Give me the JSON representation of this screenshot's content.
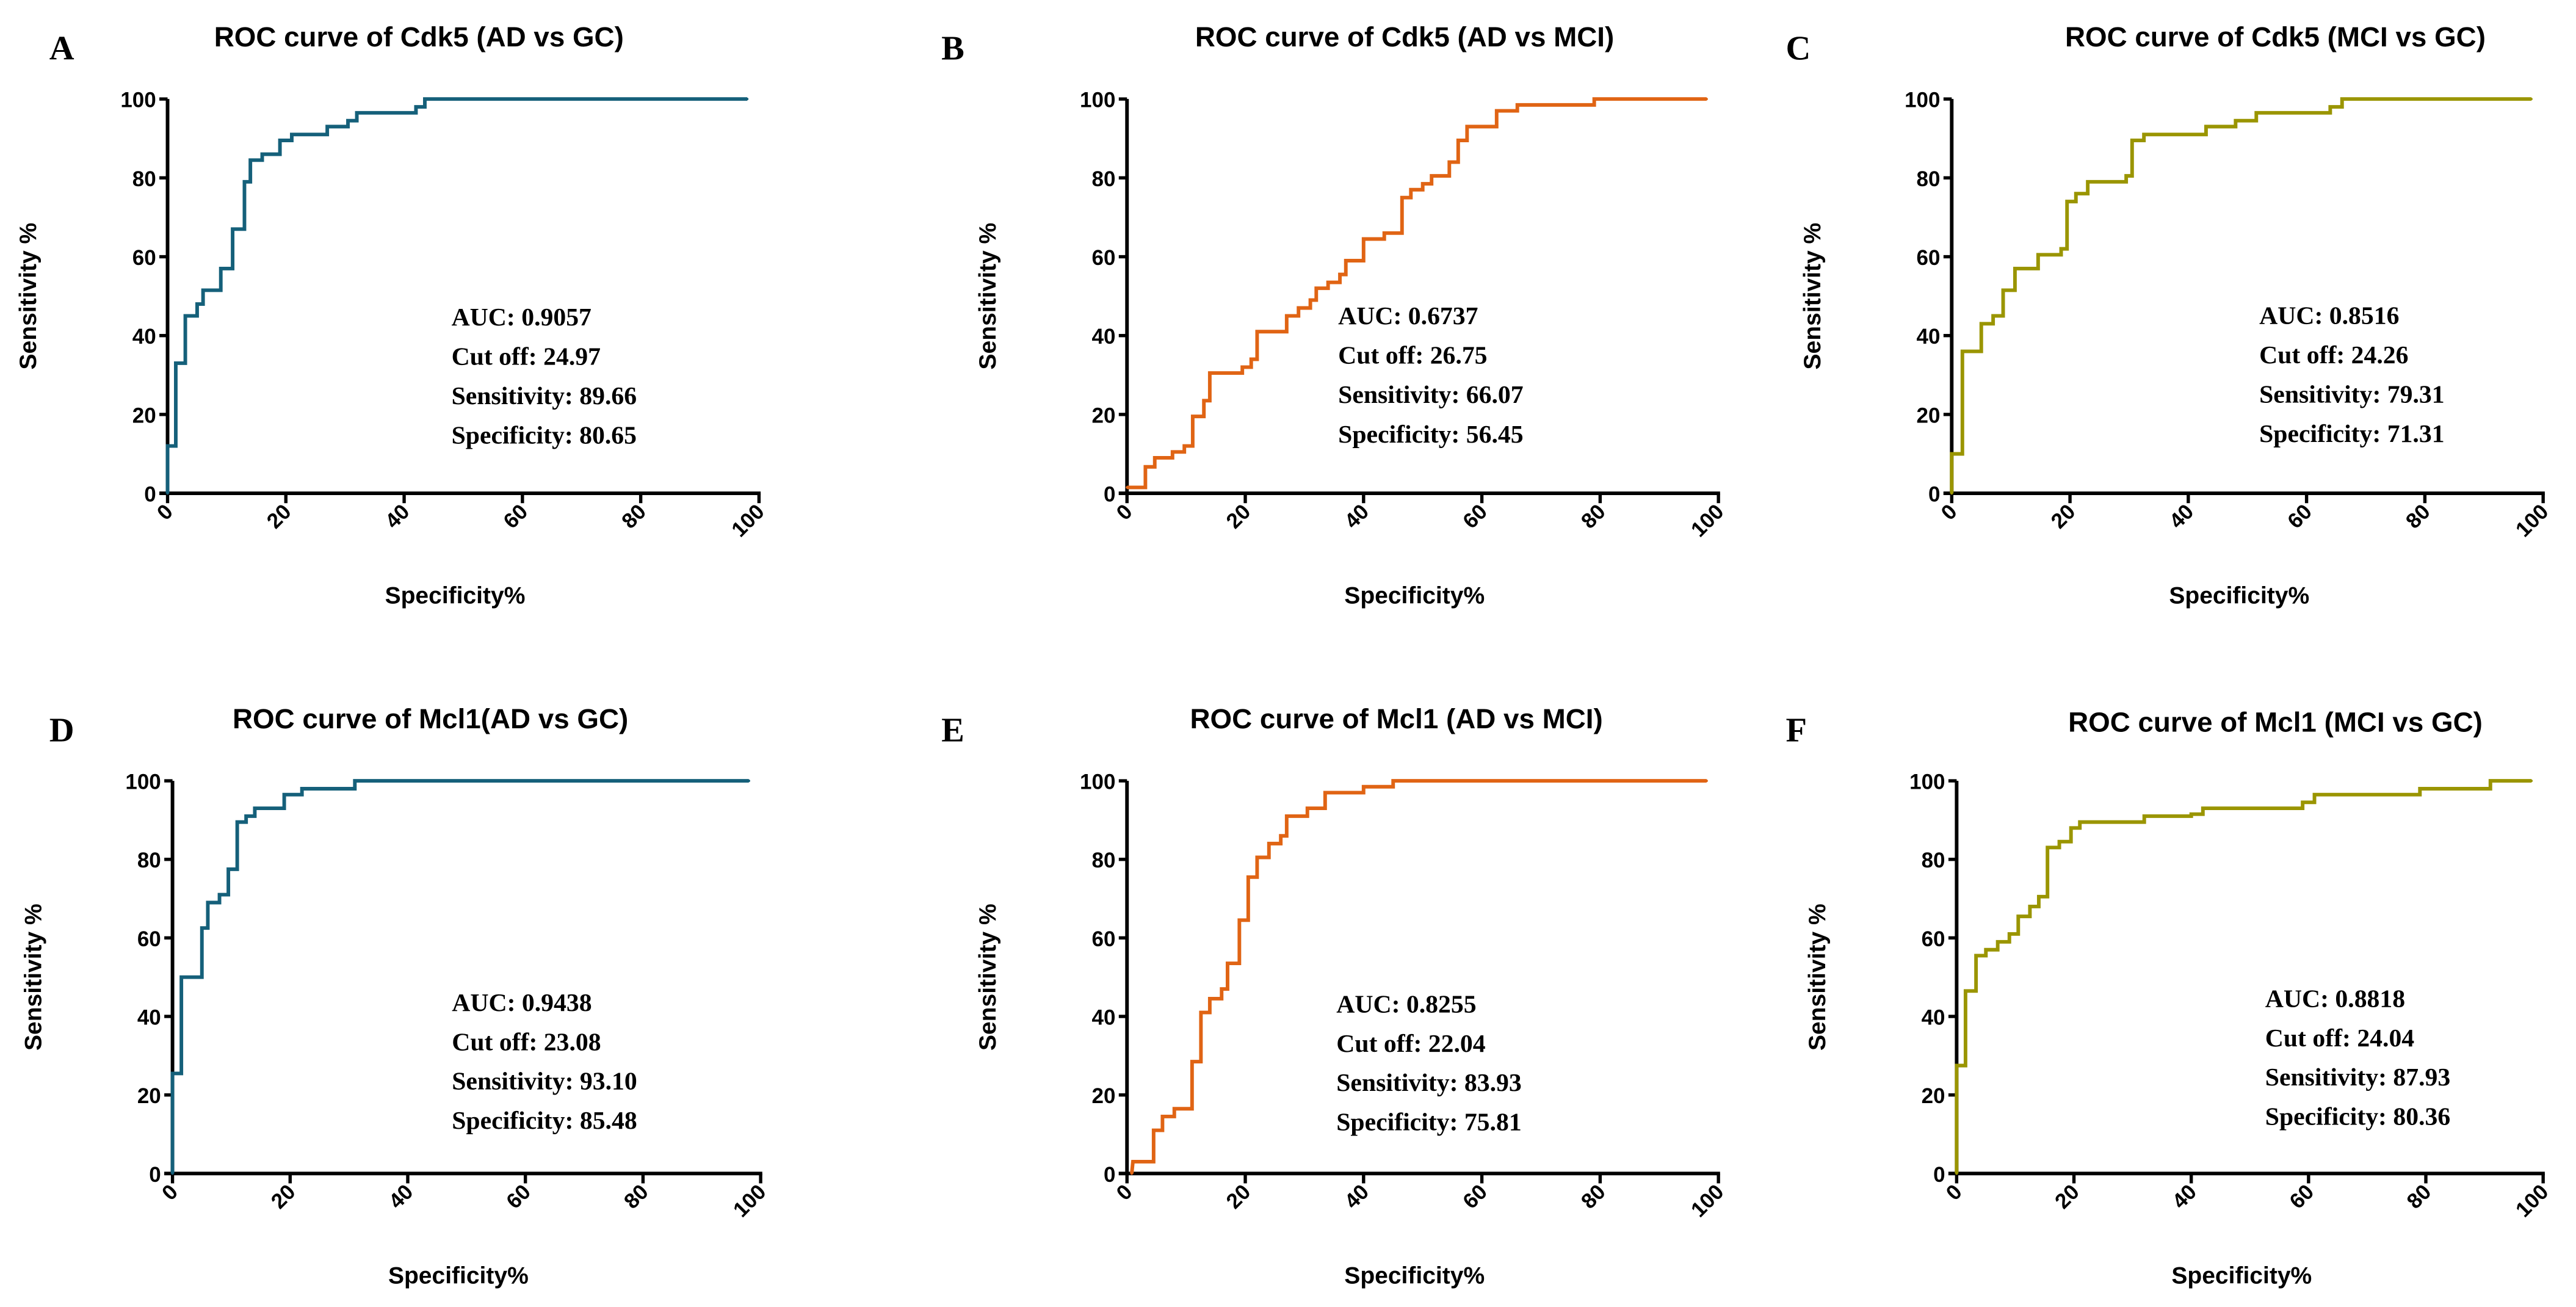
{
  "chart_data": [
    {
      "type": "line",
      "letter": "A",
      "title": "ROC curve of Cdk5 (AD vs GC)",
      "xlabel": "Specificity%",
      "ylabel": "Sensitivity %",
      "xlim": [
        0,
        100
      ],
      "ylim": [
        0,
        100
      ],
      "xticks": [
        "0",
        "20",
        "40",
        "60",
        "80",
        "100"
      ],
      "yticks": [
        "0",
        "20",
        "40",
        "60",
        "80",
        "100"
      ],
      "color": "#15607a",
      "grid": false,
      "stats": [
        "AUC: 0.9057",
        "Cut off: 24.97",
        "Sensitivity: 89.66",
        "Specificity: 80.65"
      ],
      "steps": [
        [
          0,
          0
        ],
        [
          0,
          12
        ],
        [
          1.4,
          12
        ],
        [
          1.4,
          33
        ],
        [
          3,
          33
        ],
        [
          3,
          45
        ],
        [
          5,
          45
        ],
        [
          5,
          48
        ],
        [
          6,
          48
        ],
        [
          6,
          51.5
        ],
        [
          9,
          51.5
        ],
        [
          9,
          57
        ],
        [
          11,
          57
        ],
        [
          11,
          67
        ],
        [
          13,
          67
        ],
        [
          13,
          79
        ],
        [
          14,
          79
        ],
        [
          14,
          84.5
        ],
        [
          16,
          84.5
        ],
        [
          16,
          86
        ],
        [
          19,
          86
        ],
        [
          19,
          89.5
        ],
        [
          21,
          89.5
        ],
        [
          21,
          91
        ],
        [
          27,
          91
        ],
        [
          27,
          93
        ],
        [
          30.5,
          93
        ],
        [
          30.5,
          94.5
        ],
        [
          32,
          94.5
        ],
        [
          32,
          96.5
        ],
        [
          42,
          96.5
        ],
        [
          42,
          98
        ],
        [
          43.5,
          98
        ],
        [
          43.5,
          100
        ],
        [
          98,
          100
        ]
      ]
    },
    {
      "type": "line",
      "letter": "B",
      "title": "ROC curve of Cdk5 (AD vs MCI)",
      "xlabel": "Specificity%",
      "ylabel": "Sensitivity %",
      "xlim": [
        0,
        100
      ],
      "ylim": [
        0,
        100
      ],
      "xticks": [
        "0",
        "20",
        "40",
        "60",
        "80",
        "100"
      ],
      "yticks": [
        "0",
        "20",
        "40",
        "60",
        "80",
        "100"
      ],
      "color": "#e06414",
      "grid": false,
      "stats": [
        "AUC: 0.6737",
        "Cut off: 26.75",
        "Sensitivity: 66.07",
        "Specificity: 56.45"
      ],
      "steps": [
        [
          0,
          1.5
        ],
        [
          3.1,
          1.5
        ],
        [
          3.1,
          6.7
        ],
        [
          4.7,
          6.7
        ],
        [
          4.7,
          9
        ],
        [
          7.7,
          9
        ],
        [
          7.7,
          10.5
        ],
        [
          9.7,
          10.5
        ],
        [
          9.7,
          12
        ],
        [
          11.1,
          12
        ],
        [
          11.1,
          19.5
        ],
        [
          13,
          19.5
        ],
        [
          13,
          23.5
        ],
        [
          14,
          23.5
        ],
        [
          14,
          30.5
        ],
        [
          19.5,
          30.5
        ],
        [
          19.5,
          32
        ],
        [
          21,
          32
        ],
        [
          21,
          34
        ],
        [
          22,
          34
        ],
        [
          22,
          41
        ],
        [
          27,
          41
        ],
        [
          27,
          45
        ],
        [
          29,
          45
        ],
        [
          29,
          47
        ],
        [
          31,
          47
        ],
        [
          31,
          49
        ],
        [
          32,
          49
        ],
        [
          32,
          52
        ],
        [
          34,
          52
        ],
        [
          34,
          53.5
        ],
        [
          36,
          53.5
        ],
        [
          36,
          55.5
        ],
        [
          37,
          55.5
        ],
        [
          37,
          59
        ],
        [
          40,
          59
        ],
        [
          40,
          64.5
        ],
        [
          43.5,
          64.5
        ],
        [
          43.5,
          66
        ],
        [
          46.5,
          66
        ],
        [
          46.5,
          75
        ],
        [
          48,
          75
        ],
        [
          48,
          77
        ],
        [
          50,
          77
        ],
        [
          50,
          78.5
        ],
        [
          51.5,
          78.5
        ],
        [
          51.5,
          80.5
        ],
        [
          54.5,
          80.5
        ],
        [
          54.5,
          84
        ],
        [
          56,
          84
        ],
        [
          56,
          89.5
        ],
        [
          57.5,
          89.5
        ],
        [
          57.5,
          93
        ],
        [
          62.5,
          93
        ],
        [
          62.5,
          97
        ],
        [
          66,
          97
        ],
        [
          66,
          98.5
        ],
        [
          79,
          98.5
        ],
        [
          79,
          100
        ],
        [
          98,
          100
        ]
      ]
    },
    {
      "type": "line",
      "letter": "C",
      "title": "ROC curve of Cdk5 (MCI vs GC)",
      "xlabel": "Specificity%",
      "ylabel": "Sensitivity %",
      "xlim": [
        0,
        100
      ],
      "ylim": [
        0,
        100
      ],
      "xticks": [
        "0",
        "20",
        "40",
        "60",
        "80",
        "100"
      ],
      "yticks": [
        "0",
        "20",
        "40",
        "60",
        "80",
        "100"
      ],
      "color": "#9a9500",
      "grid": false,
      "stats": [
        "AUC: 0.8516",
        "Cut off: 24.26",
        "Sensitivity: 79.31",
        "Specificity: 71.31"
      ],
      "steps": [
        [
          0,
          0
        ],
        [
          0,
          10
        ],
        [
          1.8,
          10
        ],
        [
          1.8,
          36
        ],
        [
          5,
          36
        ],
        [
          5,
          43
        ],
        [
          7,
          43
        ],
        [
          7,
          45
        ],
        [
          8.7,
          45
        ],
        [
          8.7,
          51.5
        ],
        [
          10.7,
          51.5
        ],
        [
          10.7,
          57
        ],
        [
          14.6,
          57
        ],
        [
          14.6,
          60.5
        ],
        [
          18.5,
          60.5
        ],
        [
          18.5,
          62
        ],
        [
          19.5,
          62
        ],
        [
          19.5,
          74
        ],
        [
          21,
          74
        ],
        [
          21,
          76
        ],
        [
          23,
          76
        ],
        [
          23,
          79
        ],
        [
          29.5,
          79
        ],
        [
          29.5,
          80.5
        ],
        [
          30.5,
          80.5
        ],
        [
          30.5,
          89.5
        ],
        [
          32.5,
          89.5
        ],
        [
          32.5,
          91
        ],
        [
          43,
          91
        ],
        [
          43,
          93
        ],
        [
          48,
          93
        ],
        [
          48,
          94.5
        ],
        [
          51.5,
          94.5
        ],
        [
          51.5,
          96.5
        ],
        [
          64,
          96.5
        ],
        [
          64,
          98
        ],
        [
          66,
          98
        ],
        [
          66,
          100
        ],
        [
          98,
          100
        ]
      ]
    },
    {
      "type": "line",
      "letter": "D",
      "title": "ROC curve of Mcl1(AD vs GC)",
      "xlabel": "Specificity%",
      "ylabel": "Sensitivity %",
      "xlim": [
        0,
        100
      ],
      "ylim": [
        0,
        100
      ],
      "xticks": [
        "0",
        "20",
        "40",
        "60",
        "80",
        "100"
      ],
      "yticks": [
        "0",
        "20",
        "40",
        "60",
        "80",
        "100"
      ],
      "color": "#15607a",
      "grid": false,
      "stats": [
        "AUC: 0.9438",
        "Cut off: 23.08",
        "Sensitivity: 93.10",
        "Specificity: 85.48"
      ],
      "steps": [
        [
          0,
          0
        ],
        [
          0,
          25.5
        ],
        [
          1.5,
          25.5
        ],
        [
          1.5,
          50
        ],
        [
          5,
          50
        ],
        [
          5,
          62.5
        ],
        [
          6,
          62.5
        ],
        [
          6,
          69
        ],
        [
          8,
          69
        ],
        [
          8,
          71
        ],
        [
          9.5,
          71
        ],
        [
          9.5,
          77.5
        ],
        [
          11,
          77.5
        ],
        [
          11,
          89.5
        ],
        [
          12.5,
          89.5
        ],
        [
          12.5,
          91
        ],
        [
          14,
          91
        ],
        [
          14,
          93
        ],
        [
          19,
          93
        ],
        [
          19,
          96.5
        ],
        [
          22,
          96.5
        ],
        [
          22,
          98
        ],
        [
          31,
          98
        ],
        [
          31,
          100
        ],
        [
          98,
          100
        ]
      ]
    },
    {
      "type": "line",
      "letter": "E",
      "title": "ROC curve of Mcl1 (AD vs MCI)",
      "xlabel": "Specificity%",
      "ylabel": "Sensitivity %",
      "xlim": [
        0,
        100
      ],
      "ylim": [
        0,
        100
      ],
      "xticks": [
        "0",
        "20",
        "40",
        "60",
        "80",
        "100"
      ],
      "yticks": [
        "0",
        "20",
        "40",
        "60",
        "80",
        "100"
      ],
      "color": "#e06414",
      "grid": false,
      "stats": [
        "AUC: 0.8255",
        "Cut off: 22.04",
        "Sensitivity: 83.93",
        "Specificity: 75.81"
      ],
      "steps": [
        [
          0.8,
          0
        ],
        [
          1,
          3
        ],
        [
          4.5,
          3
        ],
        [
          4.5,
          11
        ],
        [
          6,
          11
        ],
        [
          6,
          14.5
        ],
        [
          8,
          14.5
        ],
        [
          8,
          16.5
        ],
        [
          11,
          16.5
        ],
        [
          11,
          28.5
        ],
        [
          12.5,
          28.5
        ],
        [
          12.5,
          41
        ],
        [
          14,
          41
        ],
        [
          14,
          44.5
        ],
        [
          16,
          44.5
        ],
        [
          16,
          47
        ],
        [
          17,
          47
        ],
        [
          17,
          53.5
        ],
        [
          19,
          53.5
        ],
        [
          19,
          64.5
        ],
        [
          20.5,
          64.5
        ],
        [
          20.5,
          75.5
        ],
        [
          22,
          75.5
        ],
        [
          22,
          80.5
        ],
        [
          24,
          80.5
        ],
        [
          24,
          84
        ],
        [
          26,
          84
        ],
        [
          26,
          86
        ],
        [
          27,
          86
        ],
        [
          27,
          91
        ],
        [
          30.5,
          91
        ],
        [
          30.5,
          93
        ],
        [
          33.5,
          93
        ],
        [
          33.5,
          97
        ],
        [
          40,
          97
        ],
        [
          40,
          98.5
        ],
        [
          45,
          98.5
        ],
        [
          45,
          100
        ],
        [
          98,
          100
        ]
      ]
    },
    {
      "type": "line",
      "letter": "F",
      "title": "ROC curve of Mcl1 (MCI vs GC)",
      "xlabel": "Specificity%",
      "ylabel": "Sensitivity %",
      "xlim": [
        0,
        100
      ],
      "ylim": [
        0,
        100
      ],
      "xticks": [
        "0",
        "20",
        "40",
        "60",
        "80",
        "100"
      ],
      "yticks": [
        "0",
        "20",
        "40",
        "60",
        "80",
        "100"
      ],
      "color": "#9a9500",
      "grid": false,
      "stats": [
        "AUC: 0.8818",
        "Cut off: 24.04",
        "Sensitivity: 87.93",
        "Specificity: 80.36"
      ],
      "steps": [
        [
          0,
          0
        ],
        [
          0,
          27.5
        ],
        [
          1.5,
          27.5
        ],
        [
          1.5,
          46.5
        ],
        [
          3.3,
          46.5
        ],
        [
          3.3,
          55.5
        ],
        [
          5,
          55.5
        ],
        [
          5,
          57
        ],
        [
          7,
          57
        ],
        [
          7,
          59
        ],
        [
          9,
          59
        ],
        [
          9,
          61
        ],
        [
          10.5,
          61
        ],
        [
          10.5,
          65.5
        ],
        [
          12.5,
          65.5
        ],
        [
          12.5,
          68
        ],
        [
          14,
          68
        ],
        [
          14,
          70.5
        ],
        [
          15.5,
          70.5
        ],
        [
          15.5,
          83
        ],
        [
          17.5,
          83
        ],
        [
          17.5,
          84.5
        ],
        [
          19.5,
          84.5
        ],
        [
          19.5,
          88
        ],
        [
          21,
          88
        ],
        [
          21,
          89.5
        ],
        [
          32,
          89.5
        ],
        [
          32,
          91
        ],
        [
          40,
          91
        ],
        [
          40,
          91.5
        ],
        [
          42,
          91.5
        ],
        [
          42,
          93
        ],
        [
          59,
          93
        ],
        [
          59,
          94.5
        ],
        [
          61,
          94.5
        ],
        [
          61,
          96.5
        ],
        [
          79,
          96.5
        ],
        [
          79,
          98
        ],
        [
          91,
          98
        ],
        [
          91,
          100
        ],
        [
          98,
          100
        ]
      ]
    }
  ]
}
